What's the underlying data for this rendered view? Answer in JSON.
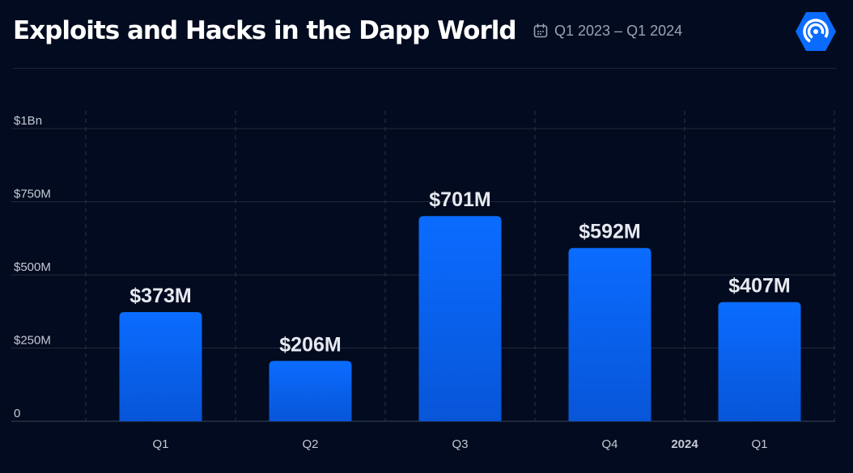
{
  "header": {
    "title": "Exploits and Hacks in the Dapp World",
    "date_range": "Q1 2023 – Q1 2024",
    "calendar_icon": "calendar-icon",
    "logo_icon": "dappradar-logo-icon"
  },
  "colors": {
    "background": "#020b1f",
    "bar_top": "#0a6cff",
    "bar_bottom": "#0855d8",
    "grid": "#222b3c",
    "text": "#ffffff",
    "muted_text": "#9aa3b4"
  },
  "chart_data": {
    "type": "bar",
    "categories": [
      "Q1",
      "Q2",
      "Q3",
      "Q4",
      "Q1"
    ],
    "values": [
      373,
      206,
      701,
      592,
      407
    ],
    "value_labels": [
      "$373M",
      "$206M",
      "$701M",
      "$592M",
      "$407M"
    ],
    "unit": "USD millions",
    "y_ticks": [
      {
        "value": 0,
        "label": "0"
      },
      {
        "value": 250,
        "label": "$250M"
      },
      {
        "value": 500,
        "label": "$500M"
      },
      {
        "value": 750,
        "label": "$750M"
      },
      {
        "value": 1000,
        "label": "$1Bn"
      }
    ],
    "year_markers": [
      {
        "before_category_index": 4,
        "label": "2024"
      }
    ],
    "ylim": [
      0,
      1000
    ],
    "grid": true,
    "title": "Exploits and Hacks in the Dapp World",
    "xlabel": "",
    "ylabel": ""
  }
}
